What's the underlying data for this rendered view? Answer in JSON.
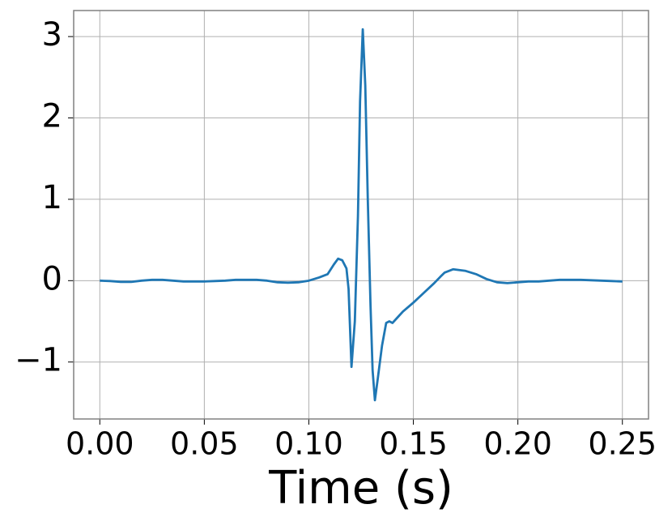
{
  "chart_data": {
    "type": "line",
    "xlabel": "Time (s)",
    "x": [
      0,
      0.005,
      0.01,
      0.015,
      0.02,
      0.025,
      0.03,
      0.035,
      0.04,
      0.045,
      0.05,
      0.055,
      0.06,
      0.065,
      0.07,
      0.075,
      0.08,
      0.085,
      0.09,
      0.095,
      0.1,
      0.105,
      0.109,
      0.112,
      0.114,
      0.116,
      0.118,
      0.119,
      0.1204,
      0.122,
      0.1235,
      0.1245,
      0.1258,
      0.127,
      0.1282,
      0.1295,
      0.1305,
      0.1316,
      0.133,
      0.135,
      0.137,
      0.1385,
      0.14,
      0.1425,
      0.145,
      0.15,
      0.155,
      0.16,
      0.163,
      0.165,
      0.169,
      0.175,
      0.18,
      0.185,
      0.19,
      0.195,
      0.2,
      0.205,
      0.21,
      0.215,
      0.22,
      0.225,
      0.23,
      0.235,
      0.24,
      0.245,
      0.25
    ],
    "series": [
      {
        "color": "#1f77b4",
        "values": [
          0,
          -0.005,
          -0.015,
          -0.015,
          0,
          0.01,
          0.01,
          0,
          -0.01,
          -0.01,
          -0.01,
          -0.005,
          0,
          0.01,
          0.01,
          0.01,
          0,
          -0.02,
          -0.025,
          -0.02,
          0,
          0.04,
          0.08,
          0.2,
          0.27,
          0.25,
          0.15,
          -0.1,
          -1.06,
          -0.5,
          0.8,
          2.2,
          3.09,
          2.4,
          1.0,
          -0.3,
          -1.1,
          -1.47,
          -1.2,
          -0.8,
          -0.52,
          -0.5,
          -0.52,
          -0.45,
          -0.38,
          -0.27,
          -0.15,
          -0.03,
          0.05,
          0.1,
          0.14,
          0.12,
          0.08,
          0.02,
          -0.02,
          -0.03,
          -0.02,
          -0.01,
          -0.01,
          0,
          0.01,
          0.01,
          0.01,
          0.005,
          0,
          -0.005,
          -0.01
        ]
      }
    ],
    "xlim": [
      -0.0125,
      0.2625
    ],
    "ylim": [
      -1.7,
      3.32
    ],
    "xticks": [
      {
        "value": 0,
        "label": "0.00"
      },
      {
        "value": 0.05,
        "label": "0.05"
      },
      {
        "value": 0.1,
        "label": "0.10"
      },
      {
        "value": 0.15,
        "label": "0.15"
      },
      {
        "value": 0.2,
        "label": "0.20"
      },
      {
        "value": 0.25,
        "label": "0.25"
      }
    ],
    "yticks": [
      {
        "value": -1,
        "label": "−1"
      },
      0,
      1,
      2,
      3
    ],
    "grid": true
  }
}
